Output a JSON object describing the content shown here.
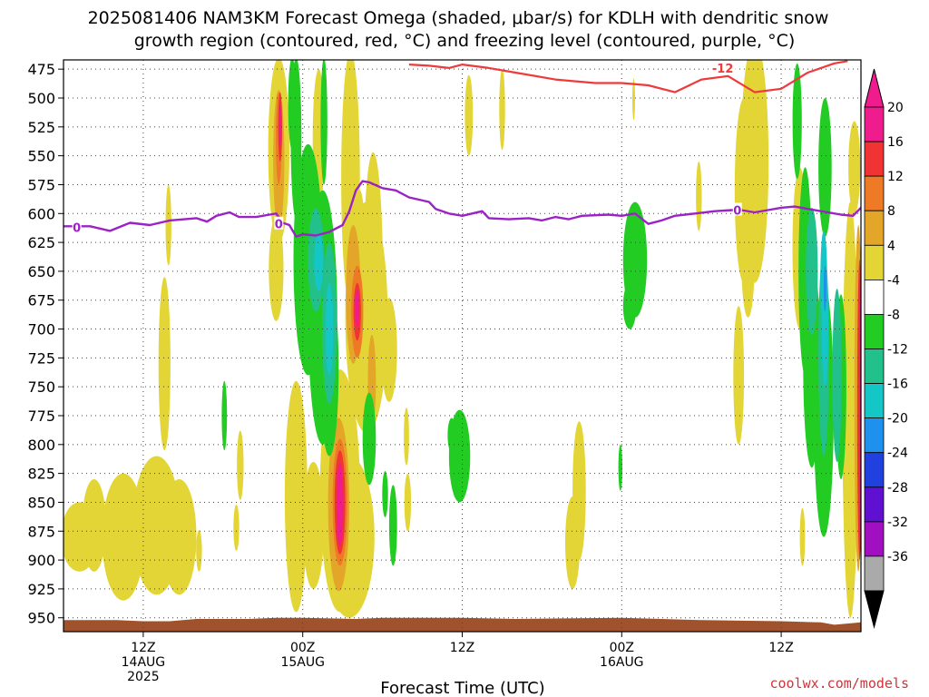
{
  "chart_data": {
    "type": "heatmap",
    "title": "2025081406 NAM3KM Forecast Omega (shaded, μbar/s) for KDLH with dendritic snow",
    "subtitle": "growth region (contoured, red, °C) and freezing level (contoured, purple, °C)",
    "xlabel": "Forecast Time (UTC)",
    "credit": "coolwx.com/models",
    "x_unit": "forecast hour",
    "xlim": [
      0,
      60
    ],
    "x_ticks": [
      {
        "x": 6,
        "lines": [
          "12Z",
          "14AUG",
          "2025"
        ]
      },
      {
        "x": 18,
        "lines": [
          "00Z",
          "15AUG",
          ""
        ]
      },
      {
        "x": 30,
        "lines": [
          "12Z",
          "",
          ""
        ]
      },
      {
        "x": 42,
        "lines": [
          "00Z",
          "16AUG",
          ""
        ]
      },
      {
        "x": 54,
        "lines": [
          "12Z",
          "",
          ""
        ]
      }
    ],
    "y_unit": "mb",
    "ylim": [
      962,
      467
    ],
    "y_ticks": [
      475,
      500,
      525,
      550,
      575,
      600,
      625,
      650,
      675,
      700,
      725,
      750,
      775,
      800,
      825,
      850,
      875,
      900,
      925,
      950
    ],
    "grid": true,
    "colorbar": {
      "levels": [
        "20",
        "16",
        "12",
        "8",
        "4",
        "-4",
        "-8",
        "-12",
        "-16",
        "-20",
        "-24",
        "-28",
        "-32",
        "-36"
      ],
      "bands": [
        {
          "from": 20,
          "to": 24,
          "color": "#ee1c8c"
        },
        {
          "from": 16,
          "to": 20,
          "color": "#f03434"
        },
        {
          "from": 12,
          "to": 16,
          "color": "#ee7a26"
        },
        {
          "from": 8,
          "to": 12,
          "color": "#e3a628"
        },
        {
          "from": 4,
          "to": 8,
          "color": "#e3d535"
        },
        {
          "from": -4,
          "to": 4,
          "color": "#ffffff"
        },
        {
          "from": -8,
          "to": -4,
          "color": "#22cc22"
        },
        {
          "from": -12,
          "to": -8,
          "color": "#22c08a"
        },
        {
          "from": -16,
          "to": -12,
          "color": "#14c6c6"
        },
        {
          "from": -20,
          "to": -16,
          "color": "#1e90ee"
        },
        {
          "from": -24,
          "to": -20,
          "color": "#2040e0"
        },
        {
          "from": -28,
          "to": -24,
          "color": "#6010d0"
        },
        {
          "from": -32,
          "to": -28,
          "color": "#a010c0"
        },
        {
          "from": -36,
          "to": -32,
          "color": "#aaaaaa"
        }
      ],
      "over_color": "#ee1c8c",
      "under_color": "#000000"
    },
    "freezing_level": {
      "color": "#9b22c4",
      "label": "0",
      "label_points": [
        [
          1,
          612
        ],
        [
          16.2,
          609
        ],
        [
          50.7,
          597
        ]
      ],
      "points": [
        [
          0,
          611
        ],
        [
          2,
          611
        ],
        [
          3.5,
          615
        ],
        [
          5,
          608
        ],
        [
          6.5,
          610
        ],
        [
          8,
          606
        ],
        [
          10,
          604
        ],
        [
          10.8,
          607
        ],
        [
          11.5,
          602
        ],
        [
          12.5,
          599
        ],
        [
          13.2,
          603
        ],
        [
          14.5,
          603
        ],
        [
          15.5,
          601
        ],
        [
          16.0,
          600
        ],
        [
          16.5,
          608
        ],
        [
          17.0,
          610
        ],
        [
          17.5,
          620
        ],
        [
          18.0,
          618
        ],
        [
          19.0,
          619
        ],
        [
          20.0,
          616
        ],
        [
          21.0,
          610
        ],
        [
          21.5,
          598
        ],
        [
          22.0,
          580
        ],
        [
          22.5,
          572
        ],
        [
          23.0,
          573
        ],
        [
          24,
          578
        ],
        [
          25,
          580
        ],
        [
          26,
          586
        ],
        [
          27.5,
          590
        ],
        [
          28,
          596
        ],
        [
          29,
          600
        ],
        [
          30,
          602
        ],
        [
          31.5,
          598
        ],
        [
          32,
          604
        ],
        [
          33.5,
          605
        ],
        [
          35,
          604
        ],
        [
          36,
          606
        ],
        [
          37,
          603
        ],
        [
          38,
          605
        ],
        [
          39,
          602
        ],
        [
          41,
          601
        ],
        [
          42,
          602
        ],
        [
          43,
          600
        ],
        [
          44,
          609
        ],
        [
          45,
          606
        ],
        [
          46,
          602
        ],
        [
          47.5,
          600
        ],
        [
          49,
          598
        ],
        [
          50.3,
          597
        ],
        [
          51,
          597
        ],
        [
          52,
          599
        ],
        [
          53,
          597
        ],
        [
          54,
          595
        ],
        [
          55,
          594
        ],
        [
          56,
          596
        ],
        [
          57,
          598
        ],
        [
          58.5,
          601
        ],
        [
          59.4,
          602
        ],
        [
          60,
          595
        ]
      ]
    },
    "dendritic_zone": {
      "color": "#ee3a3a",
      "label": "-12",
      "label_point": [
        49.6,
        474
      ],
      "points": [
        [
          26,
          471
        ],
        [
          27.5,
          472
        ],
        [
          29,
          474
        ],
        [
          30,
          471
        ],
        [
          32,
          474
        ],
        [
          34,
          478
        ],
        [
          37,
          484
        ],
        [
          40,
          487
        ],
        [
          42,
          487
        ],
        [
          44,
          489
        ],
        [
          46,
          495
        ],
        [
          48,
          484
        ],
        [
          50,
          481
        ],
        [
          51,
          488
        ],
        [
          52,
          495
        ],
        [
          54,
          492
        ],
        [
          56,
          478
        ],
        [
          58,
          470
        ],
        [
          59,
          468
        ]
      ]
    },
    "omega_regions": [
      {
        "level": 4,
        "ellipses": [
          [
            1.2,
            880,
            1.4,
            30
          ],
          [
            2.3,
            870,
            0.9,
            40
          ],
          [
            4.5,
            880,
            1.6,
            55
          ],
          [
            7,
            870,
            1.8,
            60
          ],
          [
            8.7,
            880,
            1.3,
            50
          ]
        ]
      },
      {
        "level": 4,
        "ellipses": [
          [
            7.9,
            610,
            0.22,
            35
          ],
          [
            7.6,
            730,
            0.45,
            75
          ],
          [
            7.2,
            870,
            0.35,
            40
          ]
        ]
      },
      {
        "level": 4,
        "ellipses": [
          [
            10.2,
            892,
            0.22,
            18
          ],
          [
            13.3,
            818,
            0.25,
            30
          ],
          [
            13.0,
            872,
            0.22,
            20
          ]
        ]
      },
      {
        "level": 4,
        "ellipses": [
          [
            16.2,
            545,
            0.8,
            80
          ],
          [
            16.0,
            648,
            0.55,
            45
          ]
        ]
      },
      {
        "level": 4,
        "ellipses": [
          [
            18.0,
            668,
            0.55,
            45
          ],
          [
            17.5,
            845,
            0.85,
            100
          ],
          [
            18.8,
            870,
            0.8,
            55
          ]
        ]
      },
      {
        "level": 4,
        "ellipses": [
          [
            19.2,
            535,
            0.45,
            60
          ],
          [
            21.6,
            570,
            0.7,
            110
          ],
          [
            22.8,
            690,
            1.6,
            100
          ],
          [
            24.5,
            718,
            0.6,
            45
          ],
          [
            20.8,
            840,
            1.5,
            105
          ],
          [
            21.5,
            880,
            1.9,
            70
          ]
        ]
      },
      {
        "level": 4,
        "ellipses": [
          [
            22.3,
            665,
            0.5,
            85
          ],
          [
            23.3,
            662,
            0.75,
            115
          ]
        ]
      },
      {
        "level": 4,
        "ellipses": [
          [
            25.8,
            793,
            0.2,
            25
          ],
          [
            25.9,
            850,
            0.25,
            25
          ]
        ]
      },
      {
        "level": 4,
        "ellipses": [
          [
            30.5,
            515,
            0.3,
            35
          ],
          [
            33.0,
            510,
            0.22,
            35
          ]
        ]
      },
      {
        "level": 4,
        "ellipses": [
          [
            38.8,
            840,
            0.5,
            60
          ],
          [
            38.3,
            885,
            0.55,
            40
          ]
        ]
      },
      {
        "level": 4,
        "ellipses": [
          [
            42.9,
            501,
            0.1,
            18
          ],
          [
            47.8,
            585,
            0.22,
            30
          ],
          [
            50.8,
            740,
            0.4,
            60
          ]
        ]
      },
      {
        "level": 4,
        "ellipses": [
          [
            52.0,
            555,
            1.05,
            105
          ],
          [
            51.2,
            580,
            0.7,
            80
          ],
          [
            51.5,
            640,
            0.5,
            50
          ]
        ]
      },
      {
        "level": 4,
        "ellipses": [
          [
            55.4,
            630,
            0.55,
            70
          ],
          [
            55.6,
            880,
            0.2,
            25
          ],
          [
            59.2,
            770,
            0.6,
            180
          ],
          [
            59.5,
            560,
            0.45,
            40
          ]
        ]
      },
      {
        "level": 8,
        "ellipses": [
          [
            16.2,
            553,
            0.42,
            60
          ],
          [
            17.9,
            668,
            0.3,
            25
          ]
        ]
      },
      {
        "level": 8,
        "ellipses": [
          [
            21.8,
            670,
            0.55,
            60
          ],
          [
            20.7,
            852,
            0.8,
            75
          ],
          [
            23.2,
            745,
            0.3,
            40
          ]
        ]
      },
      {
        "level": 8,
        "ellipses": [
          [
            59.8,
            760,
            0.3,
            150
          ]
        ]
      },
      {
        "level": 12,
        "ellipses": [
          [
            16.2,
            535,
            0.22,
            40
          ],
          [
            22.1,
            685,
            0.45,
            40
          ],
          [
            20.8,
            850,
            0.55,
            55
          ]
        ]
      },
      {
        "level": 16,
        "ellipses": [
          [
            16.3,
            525,
            0.15,
            30
          ],
          [
            22.1,
            685,
            0.28,
            25
          ],
          [
            20.8,
            850,
            0.4,
            45
          ],
          [
            59.9,
            770,
            0.18,
            130
          ]
        ]
      },
      {
        "level": 20,
        "ellipses": [
          [
            16.3,
            524,
            0.08,
            18
          ],
          [
            22.1,
            682,
            0.15,
            16
          ],
          [
            20.8,
            852,
            0.26,
            36
          ],
          [
            60.0,
            770,
            0.1,
            120
          ]
        ]
      },
      {
        "level": -4,
        "ellipses": [
          [
            17.5,
            535,
            0.4,
            70
          ],
          [
            18.4,
            640,
            1.1,
            100
          ],
          [
            17.2,
            505,
            0.3,
            40
          ]
        ]
      },
      {
        "level": -4,
        "ellipses": [
          [
            19.5,
            690,
            1.1,
            110
          ],
          [
            20.0,
            735,
            0.7,
            75
          ]
        ]
      },
      {
        "level": -4,
        "ellipses": [
          [
            19.6,
            520,
            0.25,
            55
          ]
        ]
      },
      {
        "level": -4,
        "ellipses": [
          [
            23.0,
            795,
            0.5,
            40
          ],
          [
            24.2,
            843,
            0.22,
            20
          ],
          [
            24.8,
            870,
            0.3,
            35
          ]
        ]
      },
      {
        "level": -4,
        "ellipses": [
          [
            29.8,
            810,
            0.8,
            40
          ],
          [
            29.2,
            792,
            0.3,
            15
          ]
        ]
      },
      {
        "level": -4,
        "ellipses": [
          [
            12.1,
            775,
            0.2,
            30
          ],
          [
            41.9,
            820,
            0.15,
            20
          ]
        ]
      },
      {
        "level": -4,
        "ellipses": [
          [
            43.0,
            640,
            0.9,
            50
          ],
          [
            42.6,
            680,
            0.5,
            20
          ]
        ]
      },
      {
        "level": -4,
        "ellipses": [
          [
            55.2,
            520,
            0.35,
            50
          ],
          [
            55.8,
            650,
            0.5,
            90
          ],
          [
            56.3,
            730,
            0.65,
            90
          ],
          [
            57.2,
            770,
            0.75,
            110
          ],
          [
            57.3,
            560,
            0.5,
            60
          ],
          [
            58.5,
            750,
            0.4,
            80
          ]
        ]
      },
      {
        "level": -8,
        "ellipses": [
          [
            19.0,
            640,
            0.6,
            45
          ],
          [
            20.0,
            695,
            0.55,
            70
          ],
          [
            56.3,
            650,
            0.45,
            55
          ],
          [
            57.2,
            720,
            0.4,
            90
          ],
          [
            58.2,
            740,
            0.35,
            75
          ]
        ]
      },
      {
        "level": -12,
        "ellipses": [
          [
            19.2,
            642,
            0.35,
            25
          ],
          [
            20.0,
            700,
            0.3,
            40
          ],
          [
            57.2,
            655,
            0.25,
            40
          ],
          [
            57.3,
            700,
            0.25,
            50
          ]
        ]
      },
      {
        "level": -16,
        "ellipses": [
          [
            57.3,
            665,
            0.1,
            20
          ]
        ]
      }
    ],
    "terrain": {
      "color": "#a0522d",
      "points": [
        [
          0,
          952
        ],
        [
          4,
          952
        ],
        [
          6,
          953
        ],
        [
          8,
          953
        ],
        [
          10,
          951
        ],
        [
          14,
          951
        ],
        [
          16,
          950
        ],
        [
          18,
          950
        ],
        [
          22,
          951
        ],
        [
          24,
          950
        ],
        [
          30,
          950
        ],
        [
          34,
          951
        ],
        [
          42,
          950
        ],
        [
          48,
          952
        ],
        [
          54,
          953
        ],
        [
          57,
          954
        ],
        [
          58,
          956
        ],
        [
          60,
          954
        ]
      ]
    }
  }
}
